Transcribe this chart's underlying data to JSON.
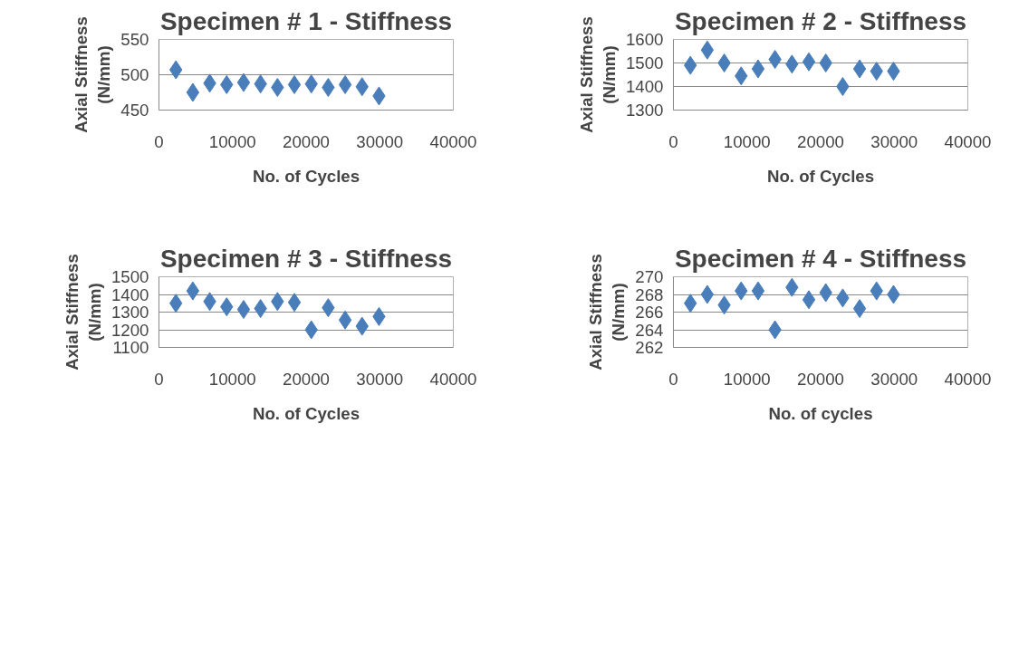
{
  "chart_data": [
    {
      "type": "scatter",
      "title": "Specimen # 1 - Stiffness",
      "xlabel": "No. of Cycles",
      "ylabel": "Axial Stiffness\n(N/mm)",
      "marker": "diamond",
      "grid": "y",
      "xlim": [
        0,
        40000
      ],
      "xticks": [
        0,
        10000,
        20000,
        30000,
        40000
      ],
      "ylim": [
        450,
        550
      ],
      "yticks": [
        450,
        500,
        550
      ],
      "x": [
        2300,
        4600,
        6900,
        9200,
        11500,
        13800,
        16100,
        18400,
        20700,
        23000,
        25300,
        27600,
        29900
      ],
      "series": [
        {
          "color": "#4a7ebb",
          "values": [
            507,
            475,
            488,
            486,
            489,
            487,
            482,
            486,
            487,
            482,
            486,
            483,
            470
          ]
        }
      ]
    },
    {
      "type": "scatter",
      "title": "Specimen # 2 - Stiffness",
      "xlabel": "No. of Cycles",
      "ylabel": "Axial Stiffness\n(N/mm)",
      "marker": "diamond",
      "grid": "y",
      "xlim": [
        0,
        40000
      ],
      "xticks": [
        0,
        10000,
        20000,
        30000,
        40000
      ],
      "ylim": [
        1300,
        1600
      ],
      "yticks": [
        1300,
        1400,
        1500,
        1600
      ],
      "x": [
        2300,
        4600,
        6900,
        9200,
        11500,
        13800,
        16100,
        18400,
        20700,
        23000,
        25300,
        27600,
        29900
      ],
      "series": [
        {
          "color": "#4a7ebb",
          "values": [
            1490,
            1555,
            1500,
            1445,
            1475,
            1515,
            1495,
            1505,
            1500,
            1400,
            1475,
            1465,
            1465
          ]
        }
      ]
    },
    {
      "type": "scatter",
      "title": "Specimen # 3 - Stiffness",
      "xlabel": "No. of Cycles",
      "ylabel": "Axial Stiffness\n(N/mm)",
      "marker": "diamond",
      "grid": "y",
      "xlim": [
        0,
        40000
      ],
      "xticks": [
        0,
        10000,
        20000,
        30000,
        40000
      ],
      "ylim": [
        1100,
        1500
      ],
      "yticks": [
        1100,
        1200,
        1300,
        1400,
        1500
      ],
      "x": [
        2300,
        4600,
        6900,
        9200,
        11500,
        13800,
        16100,
        18400,
        20700,
        23000,
        25300,
        27600,
        29900
      ],
      "series": [
        {
          "color": "#4a7ebb",
          "values": [
            1350,
            1420,
            1360,
            1330,
            1315,
            1320,
            1360,
            1355,
            1200,
            1325,
            1255,
            1220,
            1275
          ]
        }
      ]
    },
    {
      "type": "scatter",
      "title": "Specimen # 4 - Stiffness",
      "xlabel": "No. of cycles",
      "ylabel": "Axial Stiffness\n(N/mm)",
      "marker": "diamond",
      "grid": "y",
      "xlim": [
        0,
        40000
      ],
      "xticks": [
        0,
        10000,
        20000,
        30000,
        40000
      ],
      "ylim": [
        262,
        270
      ],
      "yticks": [
        262,
        264,
        266,
        268,
        270
      ],
      "x": [
        2300,
        4600,
        6900,
        9200,
        11500,
        13800,
        16100,
        18400,
        20700,
        23000,
        25300,
        27600,
        29900
      ],
      "series": [
        {
          "color": "#4a7ebb",
          "values": [
            267.0,
            268.0,
            266.8,
            268.4,
            268.4,
            264.0,
            268.8,
            267.4,
            268.2,
            267.6,
            266.4,
            268.4,
            268.0
          ]
        }
      ]
    }
  ]
}
